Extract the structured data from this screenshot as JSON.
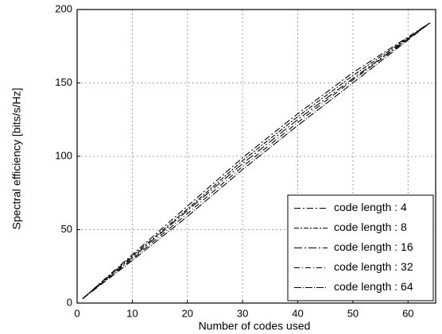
{
  "chart_data": {
    "type": "line",
    "x_label": "Number of codes used",
    "y_label": "Spectral efficiency [bits/s/Hz]",
    "x": [
      1,
      10,
      20,
      30,
      40,
      50,
      64
    ],
    "series": [
      {
        "name": "code length : 4",
        "color": "#000000",
        "values": [
          3,
          33,
          66,
          99,
          129,
          157,
          191
        ]
      },
      {
        "name": "code length : 8",
        "color": "#000000",
        "values": [
          3,
          32,
          64,
          97,
          127,
          155,
          191
        ]
      },
      {
        "name": "code length : 16",
        "color": "#000000",
        "values": [
          3,
          31,
          63,
          95,
          125,
          153,
          191
        ]
      },
      {
        "name": "code length : 32",
        "color": "#000000",
        "values": [
          3,
          30,
          61,
          93,
          123,
          152,
          191
        ]
      },
      {
        "name": "code length : 64",
        "color": "#000000",
        "values": [
          3,
          29,
          59,
          91,
          121,
          150,
          191
        ]
      }
    ],
    "xlim": [
      0,
      65
    ],
    "xticks": [
      0,
      10,
      20,
      30,
      40,
      50,
      60
    ],
    "ylim": [
      0,
      200
    ],
    "yticks": [
      0,
      50,
      100,
      150,
      200
    ],
    "grid": true,
    "legend": "lower right"
  }
}
